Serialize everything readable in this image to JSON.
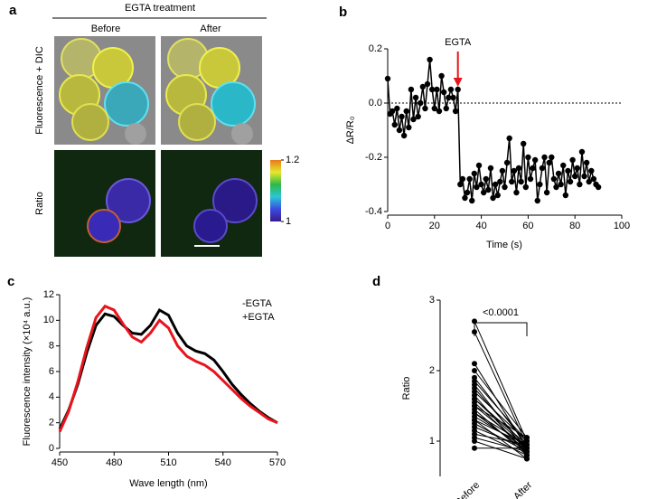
{
  "panel_a": {
    "label": "a",
    "title": "EGTA treatment",
    "columns": [
      "Before",
      "After"
    ],
    "rows": [
      "Fluorescence + DIC",
      "Ratio"
    ],
    "colorbar_lim": [
      1,
      1.2
    ],
    "colorbar_ticks": [
      1.2,
      1
    ]
  },
  "chart_data": [
    {
      "type": "line",
      "label": "b",
      "xlabel": "Time (s)",
      "ylabel": "ΔR/R₀",
      "annotation": "EGTA",
      "annotation_x": 30,
      "reference_y": 0,
      "color": "#000000",
      "annotation_color": "#e8141c",
      "xlim": [
        0,
        100
      ],
      "xticks": [
        0,
        20,
        40,
        60,
        80,
        100
      ],
      "ylim": [
        -0.4,
        0.2
      ],
      "yticks": [
        -0.4,
        -0.2,
        {
          "value": 0,
          "label": "0.0"
        },
        0.2
      ],
      "x": [
        0,
        1,
        2,
        3,
        4,
        5,
        6,
        7,
        8,
        9,
        10,
        11,
        12,
        13,
        14,
        15,
        16,
        17,
        18,
        19,
        20,
        21,
        22,
        23,
        24,
        25,
        26,
        27,
        28,
        29,
        30,
        31,
        32,
        33,
        34,
        35,
        36,
        37,
        38,
        39,
        40,
        41,
        42,
        43,
        44,
        45,
        46,
        47,
        48,
        49,
        50,
        51,
        52,
        53,
        54,
        55,
        56,
        57,
        58,
        59,
        60,
        61,
        62,
        63,
        64,
        65,
        66,
        67,
        68,
        69,
        70,
        71,
        72,
        73,
        74,
        75,
        76,
        77,
        78,
        79,
        80,
        81,
        82,
        83,
        84,
        85,
        86,
        87,
        88,
        89,
        90
      ],
      "values": [
        0.09,
        -0.04,
        -0.03,
        -0.08,
        -0.02,
        -0.1,
        -0.05,
        -0.12,
        -0.03,
        -0.09,
        0.05,
        -0.06,
        0.02,
        -0.05,
        0.0,
        0.06,
        -0.02,
        0.07,
        0.16,
        0.05,
        -0.02,
        0.05,
        -0.03,
        0.1,
        0.04,
        -0.02,
        0.02,
        0.05,
        0.02,
        -0.03,
        0.05,
        -0.3,
        -0.28,
        -0.35,
        -0.33,
        -0.28,
        -0.36,
        -0.26,
        -0.31,
        -0.23,
        -0.3,
        -0.33,
        -0.28,
        -0.32,
        -0.24,
        -0.35,
        -0.3,
        -0.34,
        -0.29,
        -0.25,
        -0.31,
        -0.22,
        -0.13,
        -0.29,
        -0.25,
        -0.33,
        -0.24,
        -0.29,
        -0.15,
        -0.31,
        -0.2,
        -0.28,
        -0.24,
        -0.21,
        -0.36,
        -0.3,
        -0.24,
        -0.2,
        -0.33,
        -0.22,
        -0.2,
        -0.28,
        -0.31,
        -0.26,
        -0.3,
        -0.23,
        -0.34,
        -0.25,
        -0.29,
        -0.21,
        -0.27,
        -0.24,
        -0.3,
        -0.18,
        -0.27,
        -0.22,
        -0.29,
        -0.25,
        -0.28,
        -0.3,
        -0.31
      ]
    },
    {
      "type": "spectrum",
      "label": "c",
      "xlabel": "Wave length (nm)",
      "ylabel": "Fluorescence intensity (×10⁴ a.u.)",
      "xlim": [
        450,
        570
      ],
      "xticks": [
        450,
        480,
        510,
        540,
        570
      ],
      "ylim": [
        0,
        12
      ],
      "yticks": [
        0,
        2,
        4,
        6,
        8,
        10,
        12
      ],
      "x": [
        450,
        455,
        460,
        465,
        470,
        475,
        480,
        485,
        490,
        495,
        500,
        505,
        510,
        515,
        520,
        525,
        530,
        535,
        540,
        545,
        550,
        555,
        560,
        565,
        570
      ],
      "series": [
        {
          "name": "-EGTA",
          "color": "#000000",
          "values": [
            1.5,
            3.0,
            5.0,
            7.5,
            9.6,
            10.5,
            10.3,
            9.6,
            9.0,
            8.9,
            9.6,
            10.8,
            10.4,
            9.0,
            8.0,
            7.6,
            7.4,
            6.9,
            6.0,
            5.0,
            4.2,
            3.5,
            2.9,
            2.4,
            2.0
          ]
        },
        {
          "name": "+EGTA",
          "color": "#e8141c",
          "values": [
            1.3,
            2.9,
            5.2,
            7.9,
            10.2,
            11.1,
            10.8,
            9.7,
            8.7,
            8.3,
            9.0,
            10.0,
            9.4,
            8.0,
            7.2,
            6.8,
            6.5,
            6.0,
            5.3,
            4.6,
            3.9,
            3.3,
            2.8,
            2.3,
            2.0
          ]
        }
      ]
    },
    {
      "type": "paired",
      "label": "d",
      "ylabel": "Ratio",
      "annotation": "<0.0001",
      "color": "#000000",
      "categories": [
        "Before",
        "After"
      ],
      "ylim": [
        0.5,
        3
      ],
      "yticks": [
        1,
        2,
        3
      ],
      "values": [
        [
          2.7,
          1.0
        ],
        [
          2.55,
          0.95
        ],
        [
          2.1,
          0.9
        ],
        [
          2.0,
          1.05
        ],
        [
          1.9,
          0.95
        ],
        [
          1.85,
          1.0
        ],
        [
          1.8,
          0.85
        ],
        [
          1.75,
          0.9
        ],
        [
          1.7,
          1.0
        ],
        [
          1.65,
          0.8
        ],
        [
          1.6,
          0.95
        ],
        [
          1.6,
          0.9
        ],
        [
          1.55,
          0.85
        ],
        [
          1.5,
          0.9
        ],
        [
          1.5,
          1.05
        ],
        [
          1.45,
          0.8
        ],
        [
          1.4,
          0.95
        ],
        [
          1.4,
          0.85
        ],
        [
          1.35,
          0.9
        ],
        [
          1.3,
          0.75
        ],
        [
          1.3,
          0.95
        ],
        [
          1.25,
          0.85
        ],
        [
          1.2,
          0.9
        ],
        [
          1.15,
          0.8
        ],
        [
          1.1,
          0.95
        ],
        [
          1.05,
          0.85
        ],
        [
          1.0,
          0.75
        ],
        [
          0.9,
          0.9
        ]
      ]
    }
  ]
}
